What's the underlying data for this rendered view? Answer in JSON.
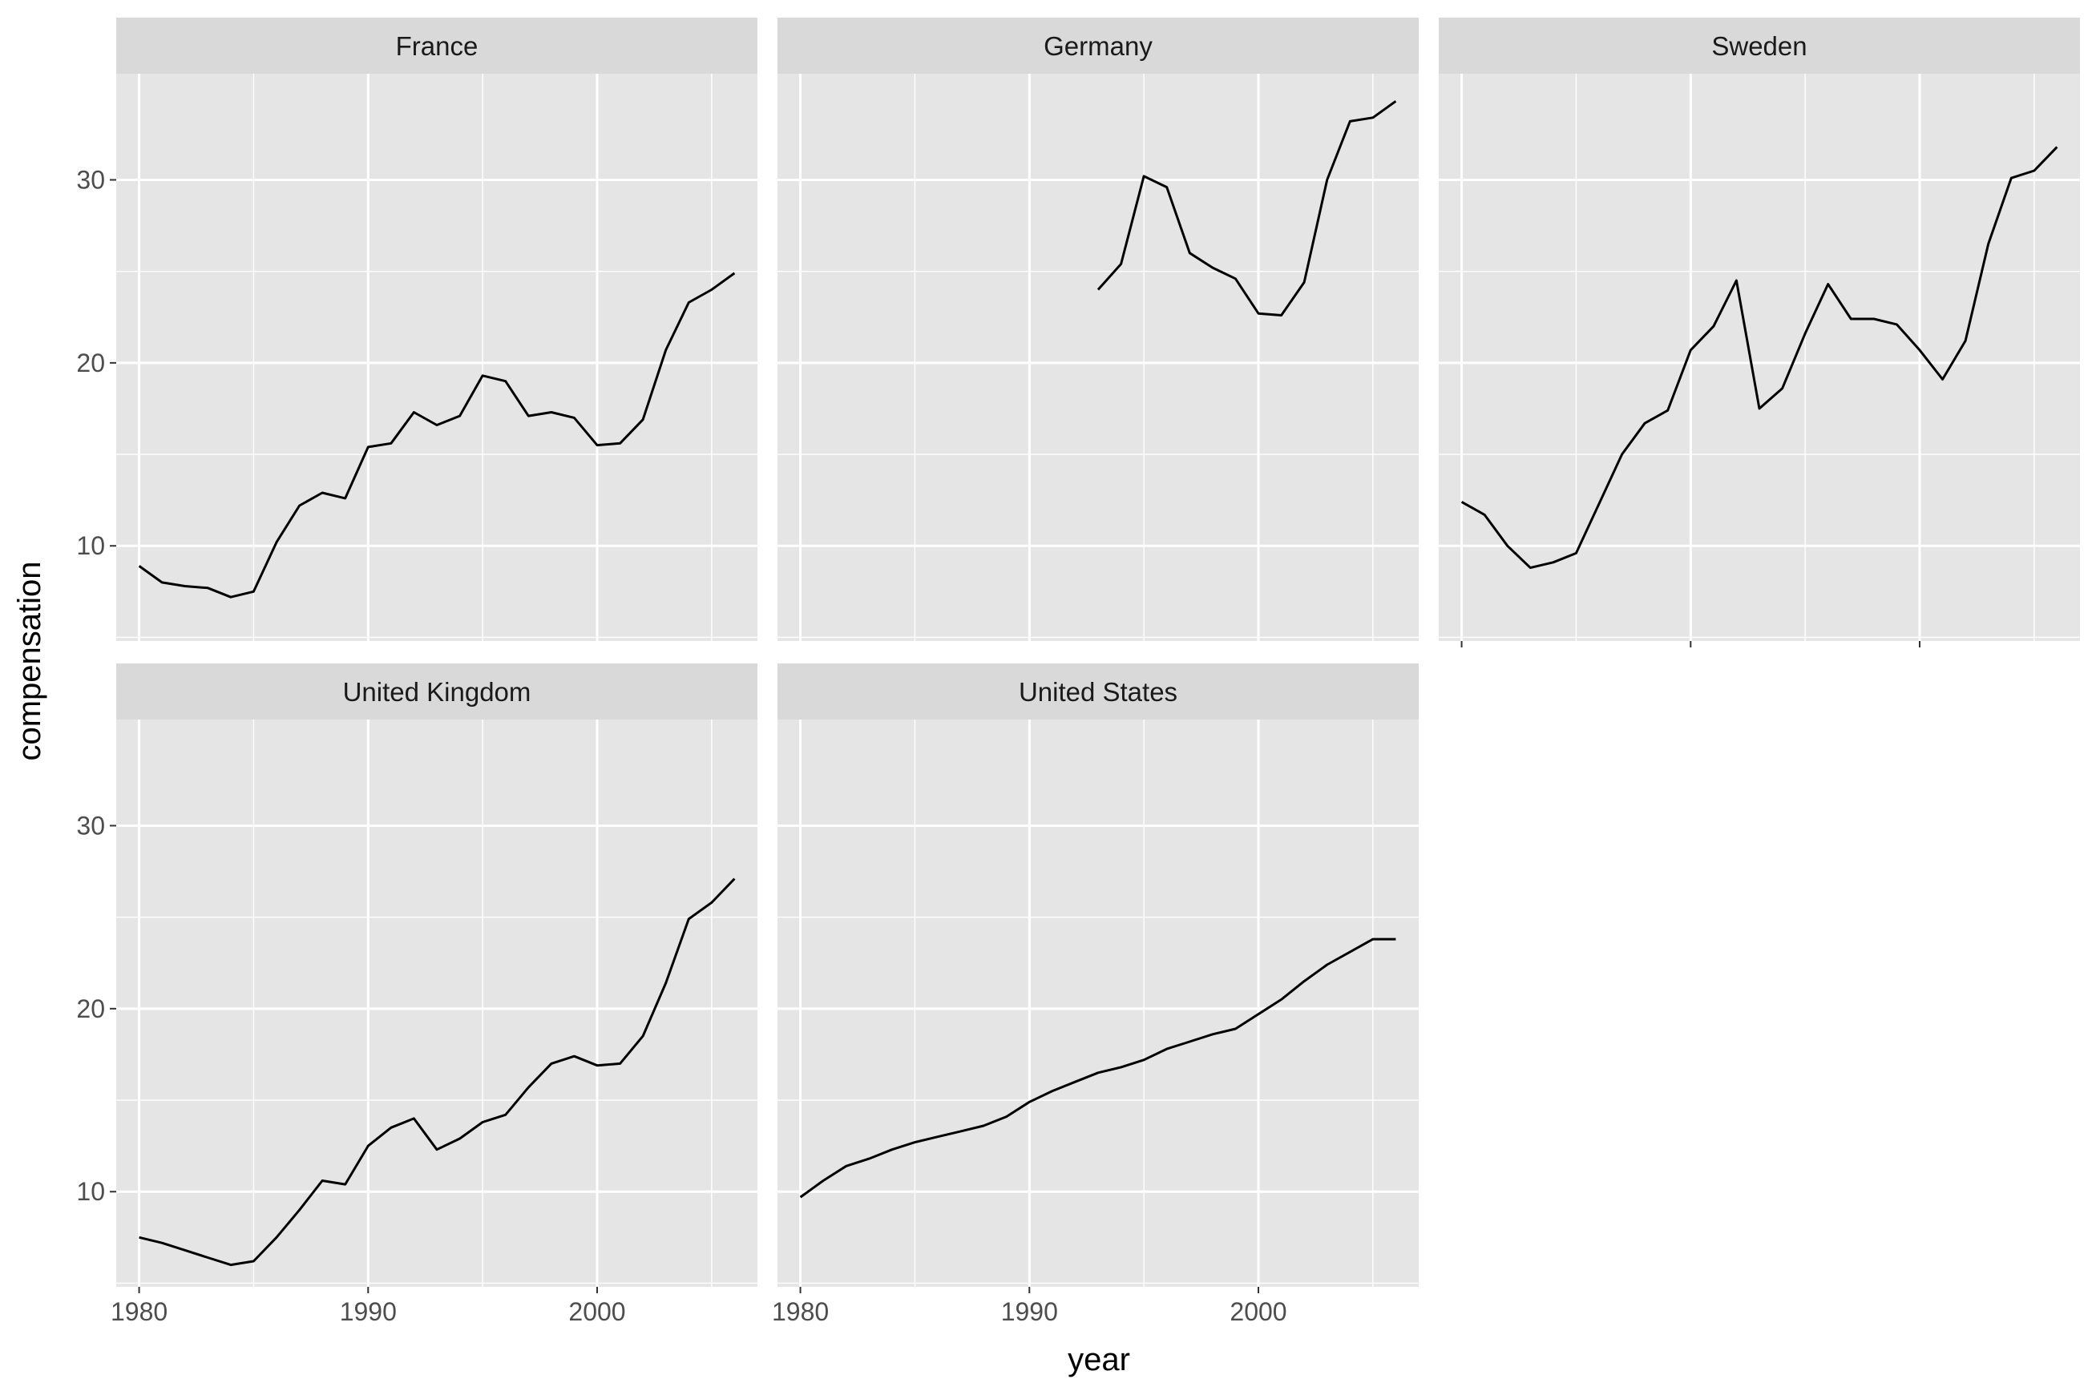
{
  "chart_data": {
    "type": "line",
    "layout": "facet_wrap",
    "xlabel": "year",
    "ylabel": "compensation",
    "xlim": [
      1979,
      2007
    ],
    "ylim": [
      4.8,
      35.8
    ],
    "x_ticks": [
      1980,
      1990,
      2000
    ],
    "x_tick_labels": [
      "1980",
      "1990",
      "2000"
    ],
    "y_ticks": [
      10,
      20,
      30
    ],
    "y_tick_labels": [
      "10",
      "20",
      "30"
    ],
    "grid": true,
    "colors": {
      "panel_bg": "#e5e5e5",
      "strip_bg": "#d9d9d9",
      "grid": "#ffffff",
      "line": "#000000"
    },
    "panels": [
      {
        "title": "France",
        "x": [
          1980,
          1981,
          1982,
          1983,
          1984,
          1985,
          1986,
          1987,
          1988,
          1989,
          1990,
          1991,
          1992,
          1993,
          1994,
          1995,
          1996,
          1997,
          1998,
          1999,
          2000,
          2001,
          2002,
          2003,
          2004,
          2005,
          2006
        ],
        "values": [
          8.9,
          8.0,
          7.8,
          7.7,
          7.2,
          7.5,
          10.2,
          12.2,
          12.9,
          12.6,
          15.4,
          15.6,
          17.3,
          16.6,
          17.1,
          19.3,
          19.0,
          17.1,
          17.3,
          17.0,
          15.5,
          15.6,
          16.9,
          20.7,
          23.3,
          24.0,
          24.9
        ]
      },
      {
        "title": "Germany",
        "x": [
          1993,
          1994,
          1995,
          1996,
          1997,
          1998,
          1999,
          2000,
          2001,
          2002,
          2003,
          2004,
          2005,
          2006
        ],
        "values": [
          24.0,
          25.4,
          30.2,
          29.6,
          26.0,
          25.2,
          24.6,
          22.7,
          22.6,
          24.4,
          30.0,
          33.2,
          33.4,
          34.3
        ]
      },
      {
        "title": "Sweden",
        "x": [
          1980,
          1981,
          1982,
          1983,
          1984,
          1985,
          1986,
          1987,
          1988,
          1989,
          1990,
          1991,
          1992,
          1993,
          1994,
          1995,
          1996,
          1997,
          1998,
          1999,
          2000,
          2001,
          2002,
          2003,
          2004,
          2005,
          2006
        ],
        "values": [
          12.4,
          11.7,
          10.0,
          8.8,
          9.1,
          9.6,
          12.3,
          15.0,
          16.7,
          17.4,
          20.7,
          22.0,
          24.5,
          17.5,
          18.6,
          21.6,
          24.3,
          22.4,
          22.4,
          22.1,
          20.7,
          19.1,
          21.2,
          26.5,
          30.1,
          30.5,
          31.8
        ]
      },
      {
        "title": "United Kingdom",
        "x": [
          1980,
          1981,
          1982,
          1983,
          1984,
          1985,
          1986,
          1987,
          1988,
          1989,
          1990,
          1991,
          1992,
          1993,
          1994,
          1995,
          1996,
          1997,
          1998,
          1999,
          2000,
          2001,
          2002,
          2003,
          2004,
          2005,
          2006
        ],
        "values": [
          7.5,
          7.2,
          6.8,
          6.4,
          6.0,
          6.2,
          7.5,
          9.0,
          10.6,
          10.4,
          12.5,
          13.5,
          14.0,
          12.3,
          12.9,
          13.8,
          14.2,
          15.7,
          17.0,
          17.4,
          16.9,
          17.0,
          18.5,
          21.4,
          24.9,
          25.8,
          27.1
        ]
      },
      {
        "title": "United States",
        "x": [
          1980,
          1981,
          1982,
          1983,
          1984,
          1985,
          1986,
          1987,
          1988,
          1989,
          1990,
          1991,
          1992,
          1993,
          1994,
          1995,
          1996,
          1997,
          1998,
          1999,
          2000,
          2001,
          2002,
          2003,
          2004,
          2005,
          2006
        ],
        "values": [
          9.7,
          10.6,
          11.4,
          11.8,
          12.3,
          12.7,
          13.0,
          13.3,
          13.6,
          14.1,
          14.9,
          15.5,
          16.0,
          16.5,
          16.8,
          17.2,
          17.8,
          18.2,
          18.6,
          18.9,
          19.7,
          20.5,
          21.5,
          22.4,
          23.1,
          23.8,
          23.8
        ]
      }
    ]
  }
}
